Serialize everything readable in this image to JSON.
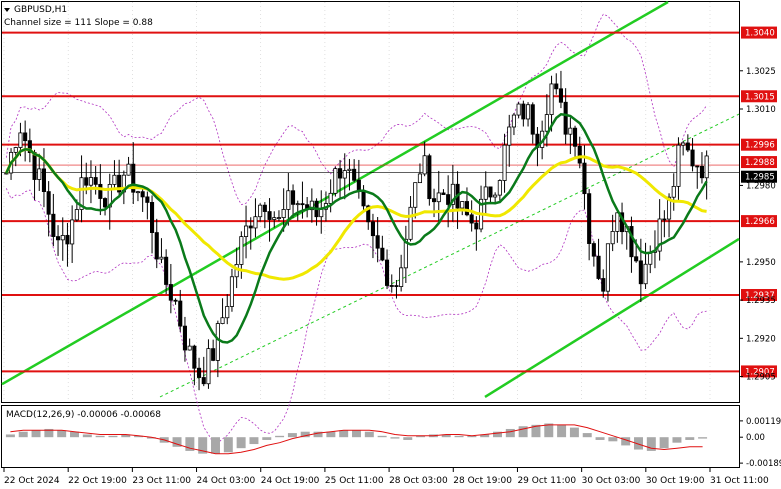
{
  "chart_data": {
    "type": "candlestick",
    "symbol_label": "GBPUSD,H1",
    "channel_label": "Channel size = 111  Slope = 0.88",
    "price_axis": {
      "range": [
        1.2895,
        1.3052
      ],
      "ticks": [
        "1.3025",
        "1.3010",
        "1.2980",
        "1.2950",
        "1.2935",
        "1.2920",
        "1.2905"
      ],
      "tick_values": [
        1.3025,
        1.301,
        1.298,
        1.295,
        1.2935,
        1.292,
        1.2905
      ]
    },
    "levels": [
      {
        "label": "1.3040",
        "value": 1.304
      },
      {
        "label": "1.3015",
        "value": 1.3015
      },
      {
        "label": "1.2996",
        "value": 1.2996
      },
      {
        "label": "1.2966",
        "value": 1.2966
      },
      {
        "label": "1.2937",
        "value": 1.2937
      },
      {
        "label": "1.2907",
        "value": 1.2907
      }
    ],
    "current_prices": [
      {
        "label": "1.2988",
        "value": 1.2988,
        "color": "#e01010"
      },
      {
        "label": "1.2985",
        "value": 1.2985,
        "color": "#000000"
      }
    ],
    "x_ticks": [
      "22 Oct 2024",
      "22 Oct 19:00",
      "23 Oct 11:00",
      "24 Oct 03:00",
      "24 Oct 19:00",
      "25 Oct 11:00",
      "28 Oct 03:00",
      "28 Oct 19:00",
      "29 Oct 11:00",
      "30 Oct 03:00",
      "30 Oct 19:00",
      "31 Oct 11:00"
    ],
    "price_path": [
      1.2985,
      1.3005,
      1.299,
      1.2975,
      1.2955,
      1.2965,
      1.2985,
      1.298,
      1.2975,
      1.2985,
      1.298,
      1.297,
      1.2945,
      1.2935,
      1.2915,
      1.2905,
      1.2915,
      1.2935,
      1.2955,
      1.297,
      1.2975,
      1.2965,
      1.2975,
      1.2972,
      1.2968,
      1.298,
      1.299,
      1.2975,
      1.296,
      1.295,
      1.294,
      1.2965,
      1.299,
      1.2975,
      1.2978,
      1.297,
      1.2965,
      1.2975,
      1.2985,
      1.3005,
      1.301,
      1.3,
      1.302,
      1.3005,
      1.3,
      1.296,
      1.294,
      1.2975,
      1.296,
      1.2945,
      1.296,
      1.297,
      1.2995,
      1.299,
      1.2987
    ],
    "macd": {
      "label": "MACD(12,26,9) -0.00006 -0.00068",
      "ticks": [
        "0.00119",
        "0.00",
        "-0.00189"
      ],
      "tick_values": [
        0.00119,
        0.0,
        -0.00189
      ],
      "range": [
        -0.0021,
        0.0014
      ],
      "histogram": [
        0.0002,
        0.0004,
        0.0005,
        0.0006,
        0.0005,
        0.0004,
        0.0002,
        0.0001,
        0.0001,
        0.0002,
        0.0001,
        -0.0001,
        -0.0004,
        -0.0007,
        -0.001,
        -0.0012,
        -0.0012,
        -0.0011,
        -0.0008,
        -0.0005,
        -0.0002,
        0.0001,
        0.0003,
        0.0004,
        0.0004,
        0.0004,
        0.0005,
        0.0005,
        0.0004,
        0.0001,
        -0.0001,
        -0.0002,
        0.0001,
        0.0002,
        0.0002,
        0.0001,
        0.0001,
        0.0002,
        0.0004,
        0.0006,
        0.0008,
        0.0009,
        0.001,
        0.0009,
        0.0007,
        0.0003,
        -0.0002,
        -0.0003,
        -0.0006,
        -0.0009,
        -0.001,
        -0.0008,
        -0.0004,
        -0.0002,
        -0.0001
      ],
      "signal": [
        0.0004,
        0.0005,
        0.0005,
        0.0005,
        0.0005,
        0.0004,
        0.0003,
        0.0002,
        0.0002,
        0.0002,
        0.0001,
        0.0,
        -0.0002,
        -0.0005,
        -0.0008,
        -0.001,
        -0.0012,
        -0.0012,
        -0.0011,
        -0.0009,
        -0.0006,
        -0.0004,
        -0.0001,
        0.0001,
        0.0003,
        0.0004,
        0.0005,
        0.0005,
        0.0005,
        0.0004,
        0.0002,
        0.0001,
        0.0001,
        0.0001,
        0.0002,
        0.0002,
        0.0001,
        0.0002,
        0.0003,
        0.0004,
        0.0006,
        0.0008,
        0.0009,
        0.0009,
        0.0009,
        0.0007,
        0.0004,
        0.0001,
        -0.0002,
        -0.0005,
        -0.0008,
        -0.0009,
        -0.0008,
        -0.0007,
        -0.0007
      ]
    },
    "colors": {
      "level": "#e01010",
      "ma_fast": "#0a7a1a",
      "ma_slow": "#f0e800",
      "channel": "#22cc22",
      "bollinger": "#b030c0",
      "candle": "#000000",
      "histogram": "#a8a8a8",
      "macd_signal": "#e01010"
    }
  }
}
